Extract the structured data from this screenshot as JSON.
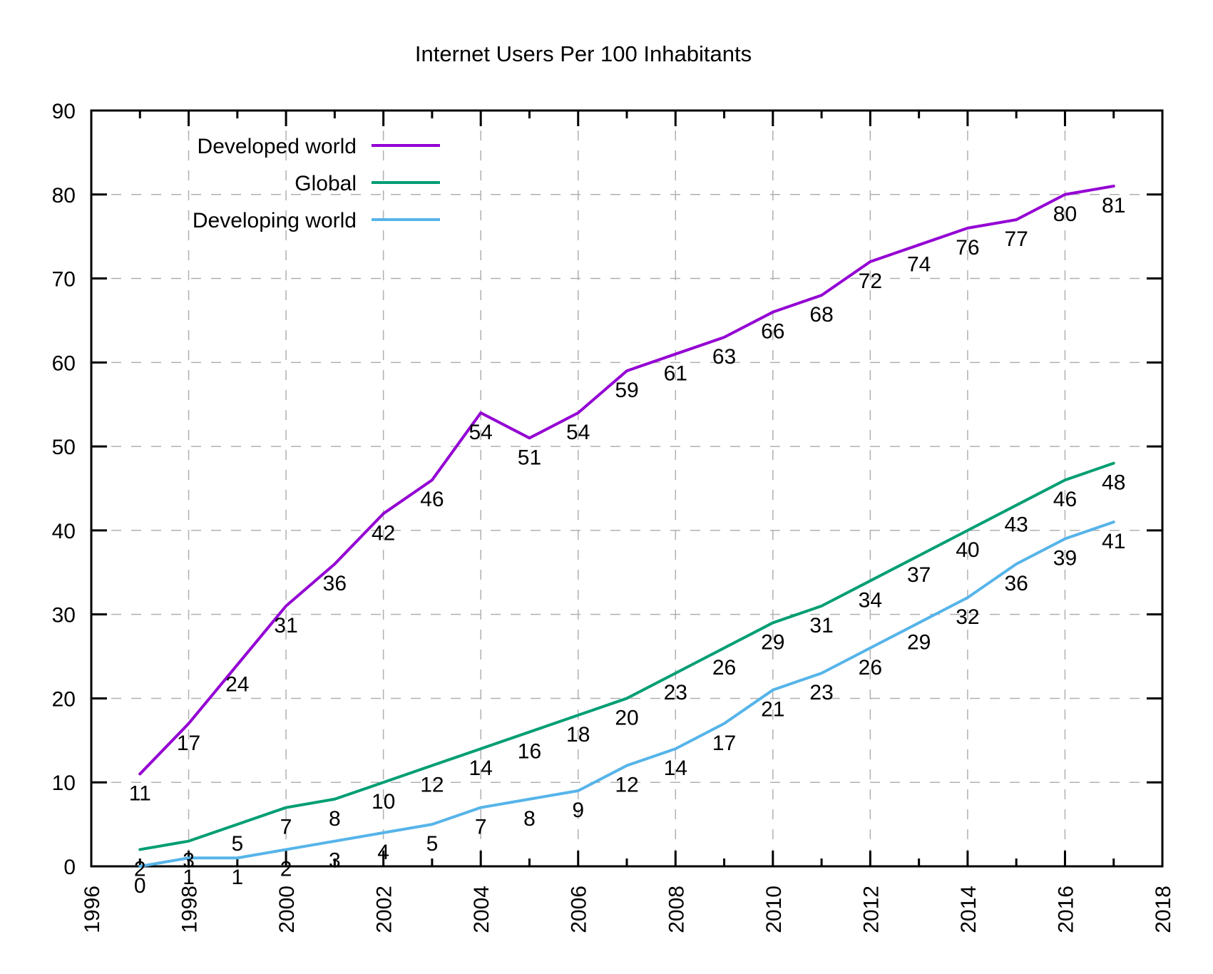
{
  "title": "Internet Users Per 100 Inhabitants",
  "chart_data": {
    "type": "line",
    "title": "Internet Users Per 100 Inhabitants",
    "xlabel": "",
    "ylabel": "",
    "xlim": [
      1996,
      2018
    ],
    "ylim": [
      0,
      90
    ],
    "x": [
      1997,
      1998,
      1999,
      2000,
      2001,
      2002,
      2003,
      2004,
      2005,
      2006,
      2007,
      2008,
      2009,
      2010,
      2011,
      2012,
      2013,
      2014,
      2015,
      2016,
      2017
    ],
    "series": [
      {
        "name": "Developed world",
        "color": "#9400d3",
        "values": [
          11,
          17,
          24,
          31,
          36,
          42,
          46,
          54,
          51,
          54,
          59,
          61,
          63,
          66,
          68,
          72,
          74,
          76,
          77,
          80,
          81
        ]
      },
      {
        "name": "Global",
        "color": "#009e73",
        "values": [
          2,
          3,
          5,
          7,
          8,
          10,
          12,
          14,
          16,
          18,
          20,
          23,
          26,
          29,
          31,
          34,
          37,
          40,
          43,
          46,
          48
        ]
      },
      {
        "name": "Developing world",
        "color": "#56b4e9",
        "values": [
          0,
          1,
          1,
          2,
          3,
          4,
          5,
          7,
          8,
          9,
          12,
          14,
          17,
          21,
          23,
          26,
          29,
          32,
          36,
          39,
          41
        ]
      }
    ],
    "x_major_ticks": [
      1996,
      1998,
      2000,
      2002,
      2004,
      2006,
      2008,
      2010,
      2012,
      2014,
      2016,
      2018
    ],
    "y_ticks": [
      0,
      10,
      20,
      30,
      40,
      50,
      60,
      70,
      80,
      90
    ],
    "grid": "dashed",
    "data_labels": true,
    "legend_position": "top-left"
  },
  "style": {
    "axis_color": "#000000",
    "grid_color": "#b0b0b0",
    "background": "#ffffff",
    "line_width": 4
  }
}
